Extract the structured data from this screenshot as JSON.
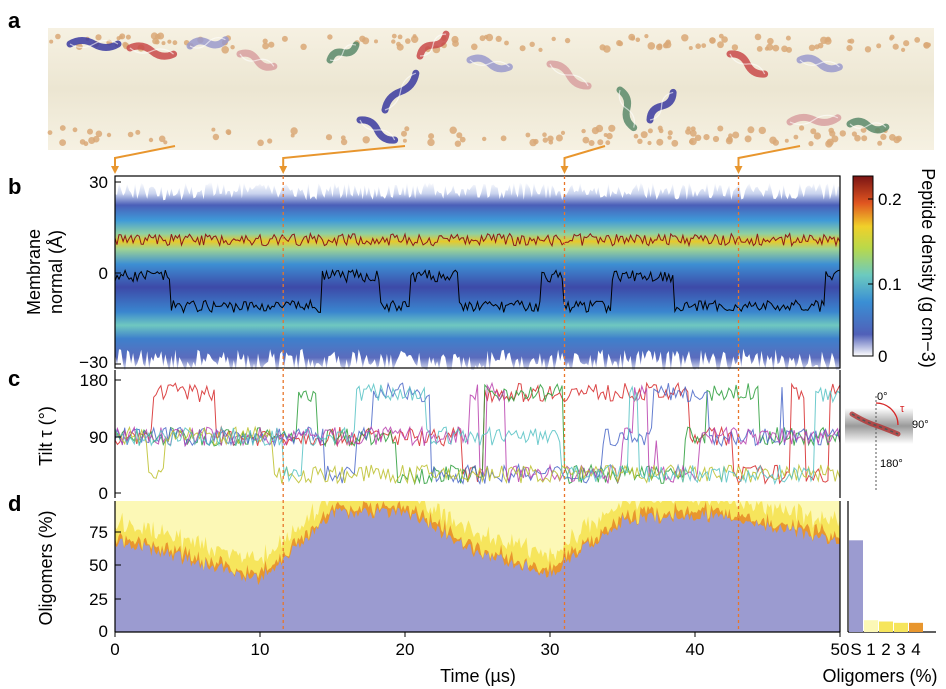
{
  "panels": {
    "a": "a",
    "b": "b",
    "c": "c",
    "d": "d"
  },
  "panel_b": {
    "ylabel_line1": "Membrane",
    "ylabel_line2": "normal (Å)",
    "yticks": [
      "30",
      "0",
      "−30"
    ],
    "ylim": [
      -33,
      30
    ],
    "colorbar_label": "Peptide density (g cm−3)",
    "colorbar_ticks": [
      "0.2",
      "0.1",
      "0"
    ],
    "trace_colors": {
      "upper": "#8b1a1a",
      "lower": "#000000"
    }
  },
  "panel_c": {
    "ylabel": "Tilt τ (°)",
    "yticks": [
      "180",
      "90",
      "0"
    ],
    "inset_labels": {
      "top": "0°",
      "tau": "τ",
      "right": "90°",
      "bottom": "180°"
    },
    "series_colors": [
      "#d62728",
      "#2a9d3a",
      "#4a67c8",
      "#b83fae",
      "#bcbf2c",
      "#56c2c4"
    ]
  },
  "panel_d": {
    "ylabel": "Oligomers (%)",
    "yticks": [
      "75",
      "50",
      "25",
      "0"
    ],
    "colors": {
      "monomer": "#9b9bd0",
      "dimer_light": "#fcf8b6",
      "dimer": "#f6e55c",
      "oligomer": "#e8962e"
    },
    "bar_categories": [
      "S",
      "1",
      "2",
      "3",
      "4"
    ],
    "bar_values": [
      70,
      9,
      8,
      7,
      7
    ]
  },
  "time_axis": {
    "xlabel": "Time (µs)",
    "xticks": [
      "0",
      "10",
      "20",
      "30",
      "40",
      "50"
    ],
    "xlim": [
      0,
      50
    ],
    "event_times": [
      0,
      11.6,
      31.0,
      43.0
    ]
  },
  "bar_axis_xlabel": "Oligomers (%)",
  "chart_data": {
    "type": "area",
    "title": "",
    "xlabel": "Time (µs)",
    "ylabel": "Oligomers (%)",
    "ylim": [
      0,
      100
    ],
    "x": [
      0,
      5,
      10,
      15,
      20,
      25,
      30,
      35,
      40,
      45,
      50
    ],
    "series": [
      {
        "name": "S",
        "values": [
          70,
          55,
          40,
          90,
          92,
          60,
          45,
          85,
          90,
          80,
          70
        ]
      }
    ]
  }
}
